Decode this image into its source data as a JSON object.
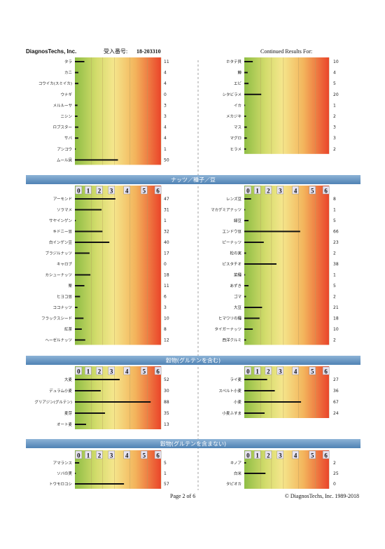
{
  "header": {
    "company": "DiagnosTechs, Inc.",
    "accession_label": "受入番号:",
    "accession": "18-203310",
    "continued": "Continued Results For:"
  },
  "scale": {
    "xlim": [
      0,
      100
    ],
    "classes": [
      0,
      1,
      2,
      3,
      4,
      5,
      6
    ]
  },
  "sections": [
    {
      "left": [
        {
          "name": "タラ",
          "value": 11
        },
        {
          "name": "カニ",
          "value": 4
        },
        {
          "name": "コウイカ(スミイカ)",
          "value": 4
        },
        {
          "name": "ウナギ",
          "value": 0
        },
        {
          "name": "メルルーサ",
          "value": 3
        },
        {
          "name": "ニシン",
          "value": 3
        },
        {
          "name": "ロブスター",
          "value": 4
        },
        {
          "name": "サバ",
          "value": 4
        },
        {
          "name": "アンコウ",
          "value": 1
        },
        {
          "name": "ムール貝",
          "value": 50
        }
      ],
      "right": [
        {
          "name": "ホタテ貝",
          "value": 10
        },
        {
          "name": "鱒",
          "value": 4
        },
        {
          "name": "エビ",
          "value": 5
        },
        {
          "name": "シタビラメ",
          "value": 20
        },
        {
          "name": "イカ",
          "value": 1
        },
        {
          "name": "メカジキ",
          "value": 2
        },
        {
          "name": "マス",
          "value": 3
        },
        {
          "name": "マグロ",
          "value": 3
        },
        {
          "name": "ヒラメ",
          "value": 2
        }
      ]
    },
    {
      "title": "ナッツ／種子／豆",
      "left": [
        {
          "name": "アーモンド",
          "value": 47
        },
        {
          "name": "ソラマメ",
          "value": 31
        },
        {
          "name": "サヤインゲン",
          "value": 1
        },
        {
          "name": "キドニー豆",
          "value": 32
        },
        {
          "name": "白インゲン豆",
          "value": 40
        },
        {
          "name": "ブラジルナッツ",
          "value": 17
        },
        {
          "name": "キャロブ",
          "value": 0
        },
        {
          "name": "カシューナッツ",
          "value": 18
        },
        {
          "name": "栗",
          "value": 11
        },
        {
          "name": "ヒヨコ豆",
          "value": 6
        },
        {
          "name": "ココナッツ",
          "value": 3
        },
        {
          "name": "フラックスシード",
          "value": 10
        },
        {
          "name": "紅茶",
          "value": 8
        },
        {
          "name": "ヘーゼルナッツ",
          "value": 12
        }
      ],
      "right": [
        {
          "name": "レンズ豆",
          "value": 8
        },
        {
          "name": "マカデミアナッツ",
          "value": 1
        },
        {
          "name": "緑豆",
          "value": 5
        },
        {
          "name": "エンドウ豆",
          "value": 66
        },
        {
          "name": "ピーナッツ",
          "value": 23
        },
        {
          "name": "松の実",
          "value": 2
        },
        {
          "name": "ピスタチオ",
          "value": 38
        },
        {
          "name": "菜種",
          "value": 1
        },
        {
          "name": "あずき",
          "value": 5
        },
        {
          "name": "ゴマ",
          "value": 2
        },
        {
          "name": "大豆",
          "value": 21
        },
        {
          "name": "ヒマワリの種",
          "value": 18
        },
        {
          "name": "タイガーナッツ",
          "value": 10
        },
        {
          "name": "西洋クルミ",
          "value": 2
        }
      ]
    },
    {
      "title": "穀物(グルテンを含む)",
      "left": [
        {
          "name": "大麦",
          "value": 52
        },
        {
          "name": "デュラム小麦",
          "value": 30
        },
        {
          "name": "グリアジン(グルテン)",
          "value": 88
        },
        {
          "name": "麦芽",
          "value": 35
        },
        {
          "name": "オート麦",
          "value": 13
        }
      ],
      "right": [
        {
          "name": "ライ麦",
          "value": 27
        },
        {
          "name": "スペルト小麦",
          "value": 36
        },
        {
          "name": "小麦",
          "value": 67
        },
        {
          "name": "小麦ふすま",
          "value": 24
        }
      ]
    },
    {
      "title": "穀物(グルテンを含まない)",
      "left": [
        {
          "name": "アマランス",
          "value": 5
        },
        {
          "name": "ソバの実",
          "value": 1
        },
        {
          "name": "トウモロコシ",
          "value": 57
        }
      ],
      "right": [
        {
          "name": "キノア",
          "value": 2
        },
        {
          "name": "白米",
          "value": 25
        },
        {
          "name": "タピオカ",
          "value": 0
        }
      ]
    }
  ],
  "footer": {
    "page": "Page 2 of 6",
    "copyright": "© DiagnosTechs, Inc. 1989-2018"
  }
}
